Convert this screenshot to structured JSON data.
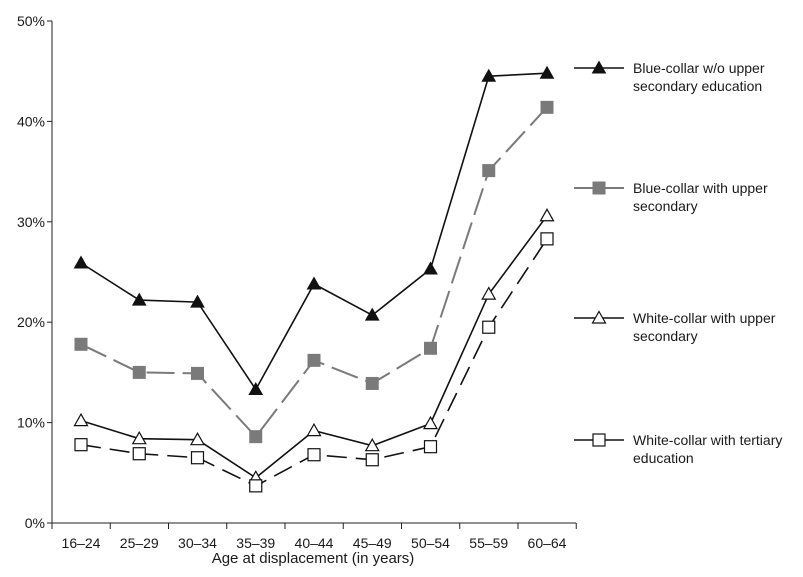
{
  "chart_data": {
    "type": "line",
    "title": "",
    "xlabel": "Age at displacement (in years)",
    "ylabel": "",
    "categories": [
      "16–24",
      "25–29",
      "30–34",
      "35–39",
      "40–44",
      "45–49",
      "50–54",
      "55–59",
      "60–64"
    ],
    "y_ticks": [
      "0%",
      "10%",
      "20%",
      "30%",
      "40%",
      "50%"
    ],
    "ylim": [
      0,
      50
    ],
    "grid": false,
    "legend_position": "right",
    "series": [
      {
        "name": "Blue-collar w/o upper secondary education",
        "legend_lines": [
          "Blue-collar w/o upper",
          "secondary education"
        ],
        "marker": "filled-triangle",
        "color": "#111111",
        "values": [
          25.9,
          22.2,
          22.0,
          13.3,
          23.8,
          20.7,
          25.3,
          44.5,
          44.8
        ]
      },
      {
        "name": "Blue-collar with upper secondary",
        "legend_lines": [
          "Blue-collar with upper",
          "secondary"
        ],
        "marker": "filled-square",
        "color": "#7a7a7a",
        "values": [
          17.8,
          15.0,
          14.9,
          8.6,
          16.2,
          13.9,
          17.4,
          35.1,
          41.4
        ]
      },
      {
        "name": "White-collar with upper secondary",
        "legend_lines": [
          "White-collar with upper",
          "secondary"
        ],
        "marker": "open-triangle",
        "color": "#111111",
        "values": [
          10.2,
          8.4,
          8.3,
          4.5,
          9.2,
          7.7,
          9.9,
          22.8,
          30.6
        ]
      },
      {
        "name": "White-collar with tertiary education",
        "legend_lines": [
          "White-collar with tertiary",
          "education"
        ],
        "marker": "open-square",
        "color": "#111111",
        "values": [
          7.8,
          6.9,
          6.5,
          3.7,
          6.8,
          6.3,
          7.6,
          19.5,
          28.3
        ]
      }
    ]
  }
}
